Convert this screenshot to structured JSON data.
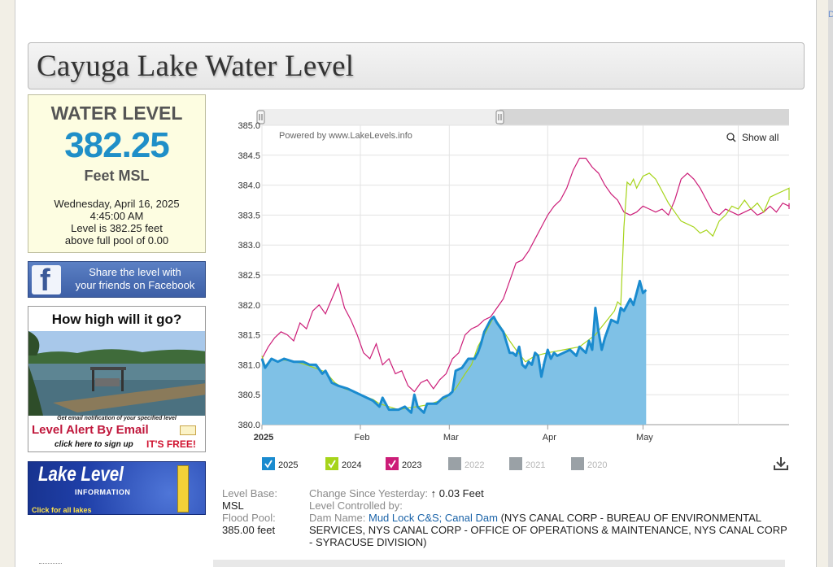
{
  "page": {
    "title": "Cayuga Lake Water Level",
    "side_letter": "D"
  },
  "level_box": {
    "heading": "WATER LEVEL",
    "value": "382.25",
    "unit": "Feet MSL",
    "date": "Wednesday, April 16, 2025",
    "time": "4:45:00 AM",
    "level_line": "Level is 382.25 feet",
    "pool_line": "above full pool of 0.00"
  },
  "facebook": {
    "line1": "Share the level with",
    "line2": "your friends on Facebook",
    "logo_letter": "f"
  },
  "alert": {
    "question": "How high will it go?",
    "small": "Get email notification of your specified level",
    "big": "Level Alert By Email",
    "signup": "click here to sign up",
    "free": "IT'S FREE!"
  },
  "lake_level_banner": {
    "title": "Lake Level",
    "sub": "INFORMATION",
    "click": "Click for all lakes"
  },
  "chart_data": {
    "type": "area",
    "powered_by": "Powered by www.LakeLevels.info",
    "show_all_label": "Show all",
    "y_ticks": [
      "385.0",
      "384.5",
      "384.0",
      "383.5",
      "383.0",
      "382.5",
      "382.0",
      "381.5",
      "381.0",
      "380.5",
      "380.0"
    ],
    "ylim": [
      380.0,
      385.0
    ],
    "x_ticks": [
      {
        "label": "2025",
        "day": 0,
        "bold": true
      },
      {
        "label": "Feb",
        "day": 31,
        "bold": false
      },
      {
        "label": "Mar",
        "day": 59,
        "bold": false
      },
      {
        "label": "Apr",
        "day": 90,
        "bold": false
      },
      {
        "label": "May",
        "day": 120,
        "bold": false
      }
    ],
    "xlim": [
      0,
      166
    ],
    "series": [
      {
        "name": "2025",
        "color": "#1a8bcf",
        "fill": "#7fc1e6",
        "points": [
          [
            0,
            381.1
          ],
          [
            1,
            380.95
          ],
          [
            3,
            381.1
          ],
          [
            5,
            381.05
          ],
          [
            7,
            381.1
          ],
          [
            10,
            381.05
          ],
          [
            13,
            381.05
          ],
          [
            15,
            381.0
          ],
          [
            17,
            381.0
          ],
          [
            19,
            380.85
          ],
          [
            20,
            380.9
          ],
          [
            22,
            380.7
          ],
          [
            24,
            380.65
          ],
          [
            27,
            380.6
          ],
          [
            29,
            380.55
          ],
          [
            31,
            380.5
          ],
          [
            33,
            380.45
          ],
          [
            35,
            380.4
          ],
          [
            37,
            380.3
          ],
          [
            38,
            380.45
          ],
          [
            40,
            380.25
          ],
          [
            43,
            380.25
          ],
          [
            45,
            380.3
          ],
          [
            47,
            380.2
          ],
          [
            48,
            380.5
          ],
          [
            49,
            380.3
          ],
          [
            51,
            380.2
          ],
          [
            52,
            380.35
          ],
          [
            55,
            380.35
          ],
          [
            57,
            380.45
          ],
          [
            59,
            380.5
          ],
          [
            60,
            380.55
          ],
          [
            61,
            380.9
          ],
          [
            63,
            380.95
          ],
          [
            65,
            381.1
          ],
          [
            67,
            381.1
          ],
          [
            68,
            381.2
          ],
          [
            69,
            381.35
          ],
          [
            70,
            381.55
          ],
          [
            72,
            381.75
          ],
          [
            73,
            381.8
          ],
          [
            74,
            381.7
          ],
          [
            76,
            381.55
          ],
          [
            78,
            381.2
          ],
          [
            79,
            381.2
          ],
          [
            80,
            381.15
          ],
          [
            81,
            381.3
          ],
          [
            82,
            381.0
          ],
          [
            83,
            380.95
          ],
          [
            84,
            381.05
          ],
          [
            85,
            381.0
          ],
          [
            86,
            381.2
          ],
          [
            87,
            381.15
          ],
          [
            88,
            380.8
          ],
          [
            89,
            381.05
          ],
          [
            90,
            381.25
          ],
          [
            91,
            381.1
          ],
          [
            92,
            381.2
          ],
          [
            93,
            381.15
          ],
          [
            95,
            381.2
          ],
          [
            97,
            381.25
          ],
          [
            99,
            381.15
          ],
          [
            100,
            381.3
          ],
          [
            101,
            381.25
          ],
          [
            102,
            381.2
          ],
          [
            103,
            381.4
          ],
          [
            104,
            381.25
          ],
          [
            105,
            381.95
          ],
          [
            106,
            381.55
          ],
          [
            107,
            381.25
          ],
          [
            108,
            381.45
          ],
          [
            110,
            381.75
          ],
          [
            112,
            381.7
          ],
          [
            113,
            381.95
          ],
          [
            114,
            381.9
          ],
          [
            116,
            382.1
          ],
          [
            117,
            382.0
          ],
          [
            118,
            382.2
          ],
          [
            119,
            382.4
          ],
          [
            120,
            382.2
          ],
          [
            121,
            382.25
          ]
        ]
      },
      {
        "name": "2024",
        "color": "#a6d41a",
        "points": [
          [
            0,
            381.15
          ],
          [
            1,
            380.98
          ],
          [
            3,
            381.1
          ],
          [
            5,
            381.06
          ],
          [
            7,
            381.08
          ],
          [
            10,
            381.05
          ],
          [
            12,
            381.03
          ],
          [
            15,
            380.98
          ],
          [
            18,
            380.92
          ],
          [
            20,
            380.88
          ],
          [
            23,
            380.7
          ],
          [
            26,
            380.6
          ],
          [
            29,
            380.55
          ],
          [
            32,
            380.48
          ],
          [
            35,
            380.42
          ],
          [
            37,
            380.35
          ],
          [
            40,
            380.3
          ],
          [
            43,
            380.25
          ],
          [
            46,
            380.28
          ],
          [
            49,
            380.3
          ],
          [
            52,
            380.33
          ],
          [
            55,
            380.38
          ],
          [
            58,
            380.45
          ],
          [
            61,
            380.6
          ],
          [
            64,
            380.85
          ],
          [
            66,
            381.0
          ],
          [
            68,
            381.3
          ],
          [
            70,
            381.5
          ],
          [
            72,
            381.7
          ],
          [
            73,
            381.8
          ],
          [
            75,
            381.65
          ],
          [
            78,
            381.4
          ],
          [
            80,
            381.25
          ],
          [
            83,
            381.05
          ],
          [
            86,
            381.15
          ],
          [
            90,
            381.2
          ],
          [
            95,
            381.25
          ],
          [
            100,
            381.3
          ],
          [
            105,
            381.5
          ],
          [
            108,
            381.7
          ],
          [
            111,
            381.9
          ],
          [
            112,
            382.05
          ],
          [
            113,
            382.0
          ],
          [
            114,
            383.3
          ],
          [
            115,
            384.05
          ],
          [
            116,
            384.0
          ],
          [
            117,
            384.1
          ],
          [
            118,
            383.95
          ],
          [
            120,
            384.15
          ],
          [
            122,
            384.2
          ],
          [
            124,
            384.1
          ],
          [
            126,
            383.9
          ],
          [
            128,
            383.7
          ],
          [
            130,
            383.55
          ],
          [
            132,
            383.4
          ],
          [
            134,
            383.35
          ],
          [
            136,
            383.3
          ],
          [
            138,
            383.2
          ],
          [
            140,
            383.25
          ],
          [
            142,
            383.15
          ],
          [
            144,
            383.4
          ],
          [
            146,
            383.5
          ],
          [
            148,
            383.65
          ],
          [
            150,
            383.6
          ],
          [
            152,
            383.75
          ],
          [
            154,
            383.6
          ],
          [
            156,
            383.7
          ],
          [
            158,
            383.55
          ],
          [
            160,
            383.8
          ],
          [
            162,
            383.85
          ],
          [
            164,
            383.9
          ],
          [
            166,
            383.95
          ],
          [
            168,
            383.8
          ],
          [
            170,
            383.75
          ]
        ]
      },
      {
        "name": "2023",
        "color": "#cc1d78",
        "points": [
          [
            0,
            381.1
          ],
          [
            2,
            381.3
          ],
          [
            4,
            381.45
          ],
          [
            6,
            381.55
          ],
          [
            8,
            381.5
          ],
          [
            10,
            381.4
          ],
          [
            12,
            381.7
          ],
          [
            14,
            381.6
          ],
          [
            16,
            381.9
          ],
          [
            18,
            382.0
          ],
          [
            20,
            381.85
          ],
          [
            22,
            382.1
          ],
          [
            24,
            382.35
          ],
          [
            26,
            381.95
          ],
          [
            28,
            381.75
          ],
          [
            30,
            381.5
          ],
          [
            32,
            381.2
          ],
          [
            34,
            381.1
          ],
          [
            36,
            381.35
          ],
          [
            38,
            381.0
          ],
          [
            40,
            381.1
          ],
          [
            42,
            380.85
          ],
          [
            44,
            380.9
          ],
          [
            46,
            380.65
          ],
          [
            48,
            380.55
          ],
          [
            50,
            380.7
          ],
          [
            52,
            380.75
          ],
          [
            54,
            380.6
          ],
          [
            56,
            380.75
          ],
          [
            58,
            380.85
          ],
          [
            60,
            381.1
          ],
          [
            62,
            381.2
          ],
          [
            64,
            381.5
          ],
          [
            66,
            381.6
          ],
          [
            68,
            381.65
          ],
          [
            70,
            381.75
          ],
          [
            72,
            381.8
          ],
          [
            74,
            381.95
          ],
          [
            76,
            382.1
          ],
          [
            78,
            382.4
          ],
          [
            80,
            382.7
          ],
          [
            82,
            382.75
          ],
          [
            84,
            382.9
          ],
          [
            86,
            383.1
          ],
          [
            88,
            383.3
          ],
          [
            90,
            383.5
          ],
          [
            92,
            383.65
          ],
          [
            94,
            383.75
          ],
          [
            96,
            383.95
          ],
          [
            98,
            384.25
          ],
          [
            100,
            384.45
          ],
          [
            102,
            384.45
          ],
          [
            104,
            384.3
          ],
          [
            106,
            384.2
          ],
          [
            108,
            384.0
          ],
          [
            110,
            383.85
          ],
          [
            112,
            383.75
          ],
          [
            114,
            383.55
          ],
          [
            116,
            383.5
          ],
          [
            118,
            383.55
          ],
          [
            120,
            383.65
          ],
          [
            122,
            383.6
          ],
          [
            124,
            383.55
          ],
          [
            126,
            383.6
          ],
          [
            128,
            383.5
          ],
          [
            130,
            383.75
          ],
          [
            132,
            384.1
          ],
          [
            134,
            384.2
          ],
          [
            136,
            384.1
          ],
          [
            138,
            383.95
          ],
          [
            140,
            383.75
          ],
          [
            142,
            383.55
          ],
          [
            144,
            383.5
          ],
          [
            146,
            383.6
          ],
          [
            148,
            383.55
          ],
          [
            150,
            383.5
          ],
          [
            152,
            383.55
          ],
          [
            154,
            383.6
          ],
          [
            156,
            383.5
          ],
          [
            158,
            383.55
          ],
          [
            160,
            383.65
          ],
          [
            162,
            383.55
          ],
          [
            164,
            383.7
          ],
          [
            166,
            383.65
          ],
          [
            168,
            383.7
          ],
          [
            170,
            383.6
          ]
        ]
      }
    ],
    "legend": [
      {
        "name": "2025",
        "color": "#1a8bcf",
        "active": true
      },
      {
        "name": "2024",
        "color": "#a6d41a",
        "active": true
      },
      {
        "name": "2023",
        "color": "#cc1d78",
        "active": true
      },
      {
        "name": "2022",
        "color": "#9aa1a6",
        "active": false
      },
      {
        "name": "2021",
        "color": "#9aa1a6",
        "active": false
      },
      {
        "name": "2020",
        "color": "#9aa1a6",
        "active": false
      }
    ]
  },
  "info": {
    "level_base_label": "Level Base:",
    "level_base_value": "MSL",
    "flood_pool_label": "Flood Pool:",
    "flood_pool_value": "385.00 feet",
    "change_label": "Change Since Yesterday:",
    "change_arrow": "↑",
    "change_value": "0.03 Feet",
    "controlled_label": "Level Controlled by:",
    "dam_label": "Dam Name:",
    "dam_link": "Mud Lock C&S; Canal Dam",
    "dam_desc_1": "(NYS CANAL CORP - BUREAU OF ENVIRONMENTAL",
    "dam_desc_2": "SERVICES, NYS CANAL CORP - OFFICE OF OPERATIONS & MAINTENANCE, NYS CANAL CORP",
    "dam_desc_3": "- SYRACUSE DIVISION)"
  }
}
